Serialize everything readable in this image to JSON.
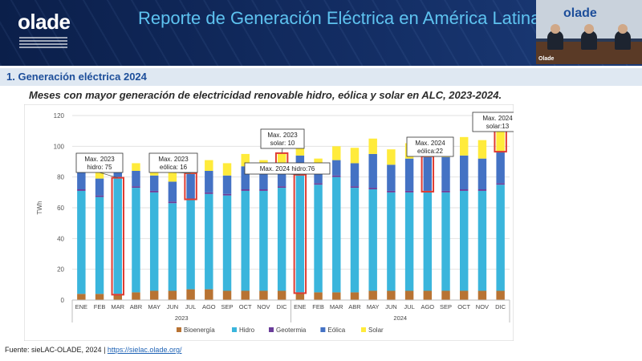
{
  "header": {
    "logo": "olade",
    "title": "Reporte de Generación Eléctrica en América Latina"
  },
  "video": {
    "logo": "olade",
    "label": "Olade"
  },
  "section": {
    "title": "1.  Generación eléctrica 2024"
  },
  "chart_title": "Meses con mayor generación de electricidad renovable  hidro, eólica y solar en ALC, 2023-2024.",
  "source": {
    "text": "Fuente: sieLAC-OLADE, 2024 | ",
    "link": "https://sielac.olade.org/"
  },
  "colors": {
    "bioenergia": "#b87333",
    "hidro": "#3ab5dc",
    "geotermia": "#6a3d9a",
    "eolica": "#4472c4",
    "solar": "#ffeb3b",
    "highlight": "#e03c31"
  },
  "chart_data": {
    "type": "bar",
    "stacked": true,
    "ylabel": "TWh",
    "ylim": [
      0,
      120
    ],
    "yticks": [
      0,
      20,
      40,
      60,
      80,
      100,
      120
    ],
    "grid": true,
    "legend_position": "bottom",
    "years": [
      "2023",
      "2024"
    ],
    "categories": [
      "ENE",
      "FEB",
      "MAR",
      "ABR",
      "MAY",
      "JUN",
      "JUL",
      "AGO",
      "SEP",
      "OCT",
      "NOV",
      "DIC",
      "ENE",
      "FEB",
      "MAR",
      "ABR",
      "MAY",
      "JUN",
      "JUL",
      "AGO",
      "SEP",
      "OCT",
      "NOV",
      "DIC"
    ],
    "series": [
      {
        "name": "Bioenergía",
        "values": [
          4,
          4,
          4,
          5,
          6,
          6,
          7,
          7,
          6,
          6,
          6,
          6,
          5,
          5,
          5,
          5,
          6,
          6,
          6,
          6,
          6,
          6,
          6,
          6
        ]
      },
      {
        "name": "Hidro",
        "values": [
          67,
          63,
          75,
          68,
          64,
          57,
          58,
          62,
          62,
          65,
          65,
          67,
          76,
          70,
          75,
          68,
          66,
          64,
          64,
          64,
          64,
          65,
          65,
          69
        ]
      },
      {
        "name": "Geotermia",
        "values": [
          1,
          1,
          1,
          1,
          1,
          1,
          1,
          1,
          1,
          1,
          1,
          1,
          1,
          1,
          1,
          1,
          1,
          1,
          1,
          1,
          1,
          1,
          1,
          1
        ]
      },
      {
        "name": "Eólica",
        "values": [
          11,
          11,
          10,
          10,
          10,
          13,
          16,
          14,
          12,
          15,
          11,
          11,
          12,
          9,
          10,
          15,
          22,
          17,
          21,
          22,
          22,
          22,
          20,
          21
        ]
      },
      {
        "name": "Solar",
        "values": [
          6,
          5,
          5,
          5,
          7,
          7,
          6,
          7,
          8,
          8,
          8,
          10,
          6,
          7,
          9,
          10,
          10,
          10,
          10,
          10,
          11,
          12,
          12,
          13
        ]
      }
    ],
    "highlights": [
      {
        "index": 2,
        "series": "Hidro",
        "label": "Max. 2023\nhidro: 75"
      },
      {
        "index": 6,
        "series": "Eólica",
        "label": "Max. 2023\neólica: 16"
      },
      {
        "index": 11,
        "series": "Solar",
        "label": "Max. 2023\nsolar: 10"
      },
      {
        "index": 12,
        "series": "Hidro",
        "label": "Max. 2024  hidro:76"
      },
      {
        "index": 19,
        "series": "Eólica",
        "label": "Max. 2024\neólica:22"
      },
      {
        "index": 23,
        "series": "Solar",
        "label": "Max. 2024\nsolar:13"
      }
    ]
  }
}
